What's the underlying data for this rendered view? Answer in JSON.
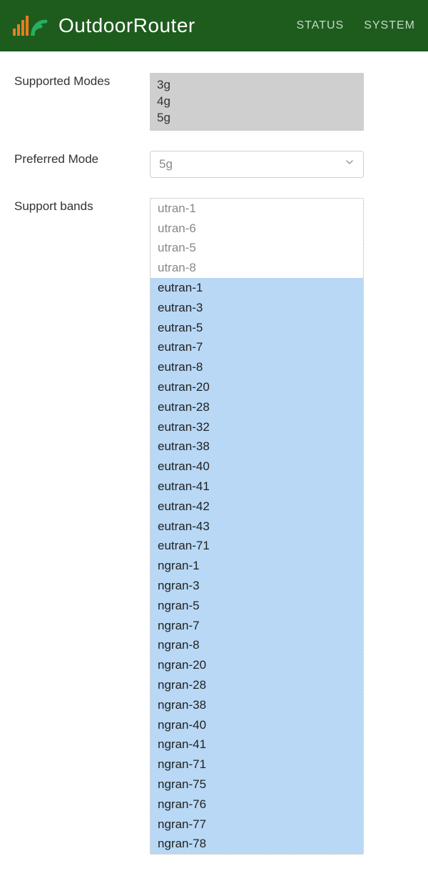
{
  "header": {
    "brand": "OutdoorRouter",
    "nav": {
      "status": "STATUS",
      "system": "SYSTEM"
    }
  },
  "labels": {
    "supported_modes": "Supported Modes",
    "preferred_mode": "Preferred Mode",
    "support_bands": "Support bands"
  },
  "supported_modes": [
    "3g",
    "4g",
    "5g"
  ],
  "preferred_mode": {
    "value": "5g"
  },
  "bands": [
    {
      "name": "utran-1",
      "selected": false
    },
    {
      "name": "utran-6",
      "selected": false
    },
    {
      "name": "utran-5",
      "selected": false
    },
    {
      "name": "utran-8",
      "selected": false
    },
    {
      "name": "eutran-1",
      "selected": true
    },
    {
      "name": "eutran-3",
      "selected": true
    },
    {
      "name": "eutran-5",
      "selected": true
    },
    {
      "name": "eutran-7",
      "selected": true
    },
    {
      "name": "eutran-8",
      "selected": true
    },
    {
      "name": "eutran-20",
      "selected": true
    },
    {
      "name": "eutran-28",
      "selected": true
    },
    {
      "name": "eutran-32",
      "selected": true
    },
    {
      "name": "eutran-38",
      "selected": true
    },
    {
      "name": "eutran-40",
      "selected": true
    },
    {
      "name": "eutran-41",
      "selected": true
    },
    {
      "name": "eutran-42",
      "selected": true
    },
    {
      "name": "eutran-43",
      "selected": true
    },
    {
      "name": "eutran-71",
      "selected": true
    },
    {
      "name": "ngran-1",
      "selected": true
    },
    {
      "name": "ngran-3",
      "selected": true
    },
    {
      "name": "ngran-5",
      "selected": true
    },
    {
      "name": "ngran-7",
      "selected": true
    },
    {
      "name": "ngran-8",
      "selected": true
    },
    {
      "name": "ngran-20",
      "selected": true
    },
    {
      "name": "ngran-28",
      "selected": true
    },
    {
      "name": "ngran-38",
      "selected": true
    },
    {
      "name": "ngran-40",
      "selected": true
    },
    {
      "name": "ngran-41",
      "selected": true
    },
    {
      "name": "ngran-71",
      "selected": true
    },
    {
      "name": "ngran-75",
      "selected": true
    },
    {
      "name": "ngran-76",
      "selected": true
    },
    {
      "name": "ngran-77",
      "selected": true
    },
    {
      "name": "ngran-78",
      "selected": true
    }
  ],
  "colors": {
    "header_bg": "#1e5c1e",
    "selected_bg": "#b8d8f5",
    "modes_bg": "#cfcfcf"
  }
}
